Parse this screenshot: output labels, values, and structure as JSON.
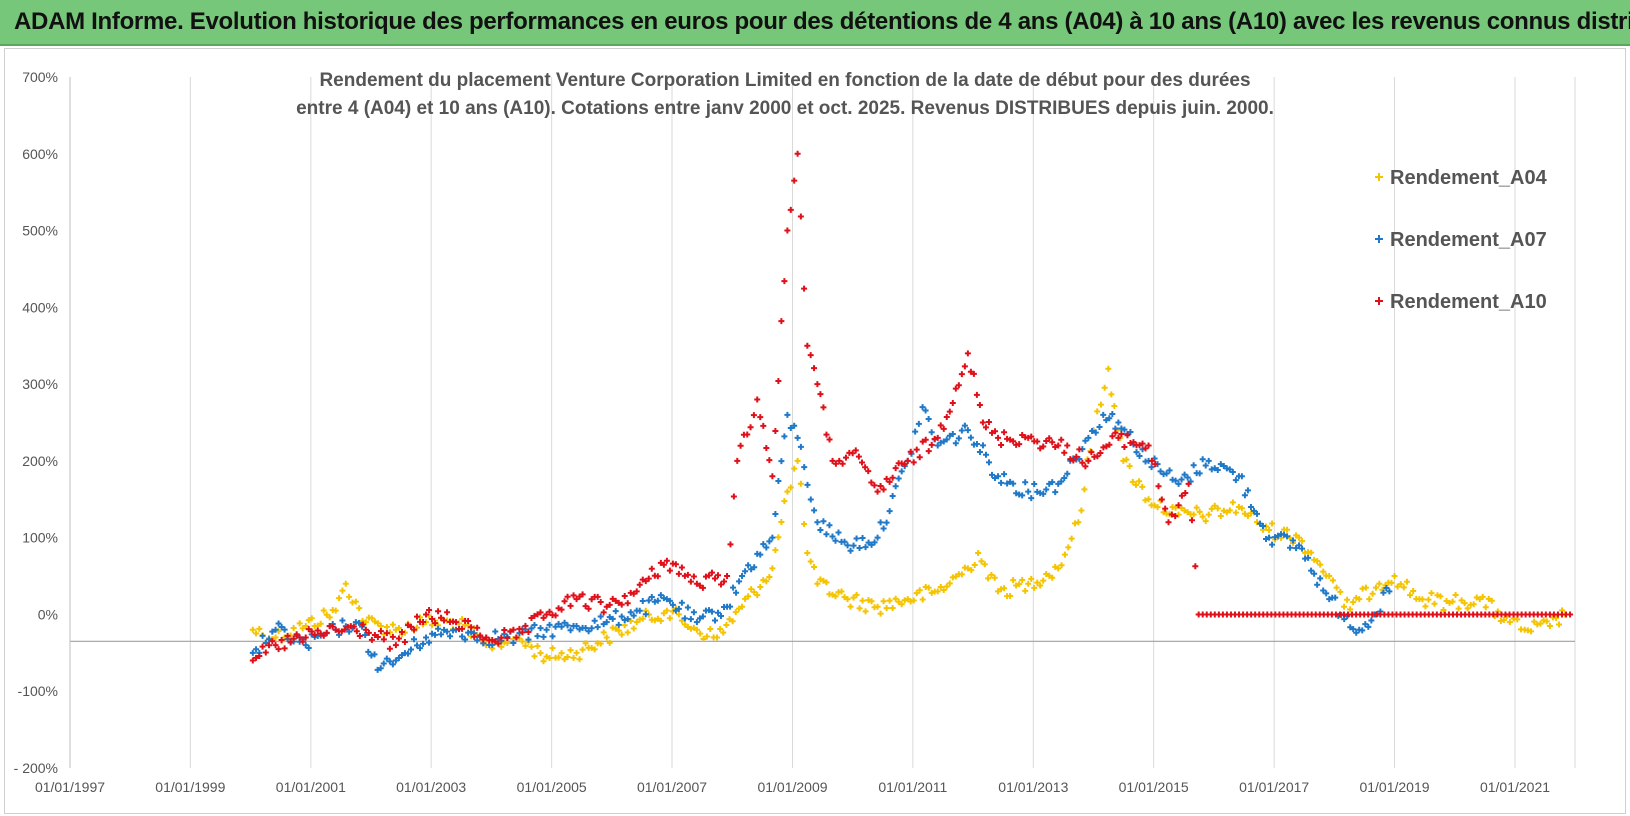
{
  "header": {
    "title": "ADAM Informe. Evolution historique des performances en euros pour des détentions de 4 ans (A04) à 10 ans (A10) avec les revenus connus distribués"
  },
  "chart_data": {
    "type": "scatter",
    "title_lines": [
      "Rendement du placement Venture Corporation Limited en fonction de la date de début pour des durées",
      "entre 4 (A04) et 10 ans (A10). Cotations entre janv 2000 et oct. 2025. Revenus DISTRIBUES depuis juin. 2000."
    ],
    "xlabel": "",
    "ylabel": "",
    "xlim": [
      "1997-01-01",
      "2021-12-31"
    ],
    "ylim": [
      -200,
      700
    ],
    "y_unit": "%",
    "y_ticks": [
      -200,
      -100,
      0,
      100,
      200,
      300,
      400,
      500,
      600,
      700
    ],
    "y_tick_labels": [
      "- 200%",
      "-100%",
      "0%",
      "100%",
      "200%",
      "300%",
      "400%",
      "500%",
      "600%",
      "700%"
    ],
    "x_ticks": [
      "1997-01-01",
      "1999-01-01",
      "2001-01-01",
      "2003-01-01",
      "2005-01-01",
      "2007-01-01",
      "2009-01-01",
      "2011-01-01",
      "2013-01-01",
      "2015-01-01",
      "2017-01-01",
      "2019-01-01",
      "2021-01-01"
    ],
    "x_tick_labels": [
      "01/01/1997",
      "01/01/1999",
      "01/01/2001",
      "01/01/2003",
      "01/01/2005",
      "01/01/2007",
      "01/01/2009",
      "01/01/2011",
      "01/01/2013",
      "01/01/2015",
      "01/01/2017",
      "01/01/2019",
      "01/01/2021"
    ],
    "grid": "vertical",
    "legend_position": "top-right",
    "series": [
      {
        "name": "Rendement_A04",
        "color": "#f5c400",
        "points": [
          [
            "2000-01-15",
            -20
          ],
          [
            "2000-06-01",
            -30
          ],
          [
            "2000-12-01",
            -15
          ],
          [
            "2001-06-01",
            5
          ],
          [
            "2001-08-01",
            40
          ],
          [
            "2001-12-01",
            -10
          ],
          [
            "2002-06-01",
            -20
          ],
          [
            "2002-12-01",
            -10
          ],
          [
            "2003-06-01",
            -10
          ],
          [
            "2003-12-01",
            -40
          ],
          [
            "2004-06-01",
            -30
          ],
          [
            "2004-12-01",
            -55
          ],
          [
            "2005-06-01",
            -50
          ],
          [
            "2005-12-01",
            -30
          ],
          [
            "2006-06-01",
            -10
          ],
          [
            "2006-12-01",
            5
          ],
          [
            "2007-06-01",
            -20
          ],
          [
            "2007-10-01",
            -30
          ],
          [
            "2008-03-01",
            10
          ],
          [
            "2008-09-01",
            60
          ],
          [
            "2008-12-01",
            160
          ],
          [
            "2009-02-01",
            200
          ],
          [
            "2009-04-01",
            80
          ],
          [
            "2009-06-01",
            40
          ],
          [
            "2009-12-01",
            20
          ],
          [
            "2010-06-01",
            10
          ],
          [
            "2010-12-01",
            20
          ],
          [
            "2011-06-01",
            30
          ],
          [
            "2011-12-01",
            60
          ],
          [
            "2012-02-01",
            80
          ],
          [
            "2012-06-01",
            30
          ],
          [
            "2012-12-01",
            40
          ],
          [
            "2013-06-01",
            60
          ],
          [
            "2013-10-01",
            120
          ],
          [
            "2014-01-01",
            240
          ],
          [
            "2014-04-01",
            320
          ],
          [
            "2014-07-01",
            200
          ],
          [
            "2014-12-01",
            150
          ],
          [
            "2015-06-01",
            130
          ],
          [
            "2015-12-01",
            130
          ],
          [
            "2016-06-01",
            140
          ],
          [
            "2016-12-01",
            110
          ],
          [
            "2017-06-01",
            100
          ],
          [
            "2017-12-01",
            50
          ],
          [
            "2018-03-01",
            10
          ],
          [
            "2018-06-01",
            20
          ],
          [
            "2018-10-01",
            40
          ],
          [
            "2019-01-01",
            50
          ],
          [
            "2019-06-01",
            20
          ],
          [
            "2019-12-01",
            15
          ],
          [
            "2020-06-01",
            20
          ],
          [
            "2020-12-01",
            -10
          ],
          [
            "2021-03-01",
            -20
          ],
          [
            "2021-08-01",
            -15
          ],
          [
            "2021-11-01",
            0
          ]
        ]
      },
      {
        "name": "Rendement_A07",
        "color": "#1f78c8",
        "points": [
          [
            "2000-01-15",
            -50
          ],
          [
            "2000-06-01",
            -20
          ],
          [
            "2000-12-01",
            -40
          ],
          [
            "2001-06-01",
            -20
          ],
          [
            "2001-10-01",
            -10
          ],
          [
            "2002-03-01",
            -70
          ],
          [
            "2002-06-01",
            -60
          ],
          [
            "2002-12-01",
            -30
          ],
          [
            "2003-06-01",
            -20
          ],
          [
            "2003-12-01",
            -30
          ],
          [
            "2004-06-01",
            -30
          ],
          [
            "2004-12-01",
            -20
          ],
          [
            "2005-06-01",
            -15
          ],
          [
            "2005-12-01",
            -10
          ],
          [
            "2006-06-01",
            5
          ],
          [
            "2006-12-01",
            20
          ],
          [
            "2007-06-01",
            -10
          ],
          [
            "2007-12-01",
            10
          ],
          [
            "2008-03-01",
            50
          ],
          [
            "2008-09-01",
            100
          ],
          [
            "2008-12-01",
            260
          ],
          [
            "2009-02-01",
            230
          ],
          [
            "2009-06-01",
            120
          ],
          [
            "2009-12-01",
            90
          ],
          [
            "2010-06-01",
            100
          ],
          [
            "2010-12-01",
            200
          ],
          [
            "2011-03-01",
            270
          ],
          [
            "2011-06-01",
            220
          ],
          [
            "2011-12-01",
            240
          ],
          [
            "2012-06-01",
            180
          ],
          [
            "2012-12-01",
            160
          ],
          [
            "2013-06-01",
            170
          ],
          [
            "2013-12-01",
            230
          ],
          [
            "2014-03-01",
            260
          ],
          [
            "2014-06-01",
            250
          ],
          [
            "2014-12-01",
            200
          ],
          [
            "2015-06-01",
            170
          ],
          [
            "2015-12-01",
            200
          ],
          [
            "2016-06-01",
            180
          ],
          [
            "2016-12-01",
            100
          ],
          [
            "2017-06-01",
            90
          ],
          [
            "2017-12-01",
            20
          ],
          [
            "2018-06-01",
            -20
          ],
          [
            "2018-09-01",
            0
          ],
          [
            "2018-12-01",
            30
          ]
        ]
      },
      {
        "name": "Rendement_A10",
        "color": "#e0101a",
        "points": [
          [
            "2000-01-15",
            -60
          ],
          [
            "2000-06-01",
            -40
          ],
          [
            "2000-12-01",
            -30
          ],
          [
            "2001-06-01",
            -20
          ],
          [
            "2001-12-01",
            -20
          ],
          [
            "2002-06-01",
            -40
          ],
          [
            "2002-12-01",
            0
          ],
          [
            "2003-06-01",
            -10
          ],
          [
            "2003-12-01",
            -30
          ],
          [
            "2004-06-01",
            -30
          ],
          [
            "2004-12-01",
            0
          ],
          [
            "2005-06-01",
            20
          ],
          [
            "2005-12-01",
            10
          ],
          [
            "2006-06-01",
            30
          ],
          [
            "2006-12-01",
            70
          ],
          [
            "2007-06-01",
            40
          ],
          [
            "2007-12-01",
            50
          ],
          [
            "2008-02-01",
            200
          ],
          [
            "2008-06-01",
            280
          ],
          [
            "2008-09-01",
            180
          ],
          [
            "2008-12-01",
            500
          ],
          [
            "2009-02-01",
            600
          ],
          [
            "2009-04-01",
            350
          ],
          [
            "2009-06-01",
            300
          ],
          [
            "2009-09-01",
            200
          ],
          [
            "2010-01-01",
            210
          ],
          [
            "2010-06-01",
            160
          ],
          [
            "2010-12-01",
            200
          ],
          [
            "2011-06-01",
            230
          ],
          [
            "2011-12-01",
            340
          ],
          [
            "2012-03-01",
            250
          ],
          [
            "2012-06-01",
            230
          ],
          [
            "2012-12-01",
            230
          ],
          [
            "2013-06-01",
            220
          ],
          [
            "2013-12-01",
            200
          ],
          [
            "2014-06-01",
            230
          ],
          [
            "2014-12-01",
            220
          ],
          [
            "2015-04-01",
            120
          ],
          [
            "2015-08-01",
            170
          ],
          [
            "2015-10-01",
            0
          ],
          [
            "2021-12-01",
            0
          ]
        ]
      }
    ]
  }
}
